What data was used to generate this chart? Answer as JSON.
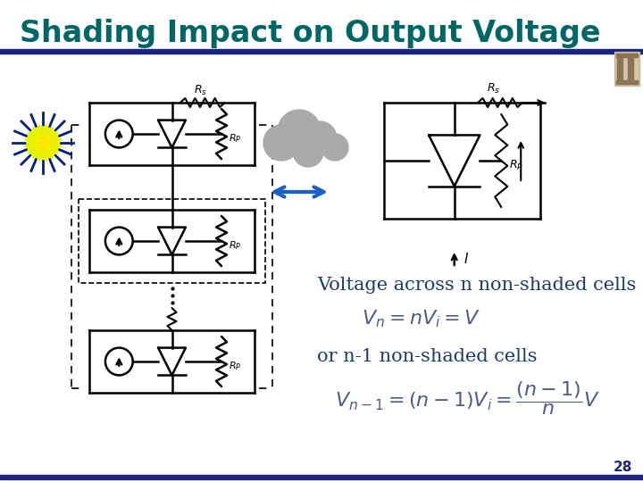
{
  "title": "Shading Impact on Output Voltage",
  "title_color": "#006666",
  "title_fontsize": 24,
  "bg_color": "#ffffff",
  "bar_color": "#1a237e",
  "text1": "Voltage across n non-shaded cells",
  "text1_color": "#1a3a6e",
  "text1_fontsize": 15,
  "formula1": "$V_n = nV_i = V$",
  "formula1_color": "#4a5a8a",
  "formula1_fontsize": 14,
  "text2": "or n-1 non-shaded cells",
  "text2_color": "#1a3a6e",
  "text2_fontsize": 15,
  "formula2": "$V_{n-1} = (n-1)V_i = \\dfrac{(n-1)}{n}V$",
  "formula2_color": "#4a5a8a",
  "formula2_fontsize": 14,
  "page_number": "28",
  "page_color": "#1a237e"
}
